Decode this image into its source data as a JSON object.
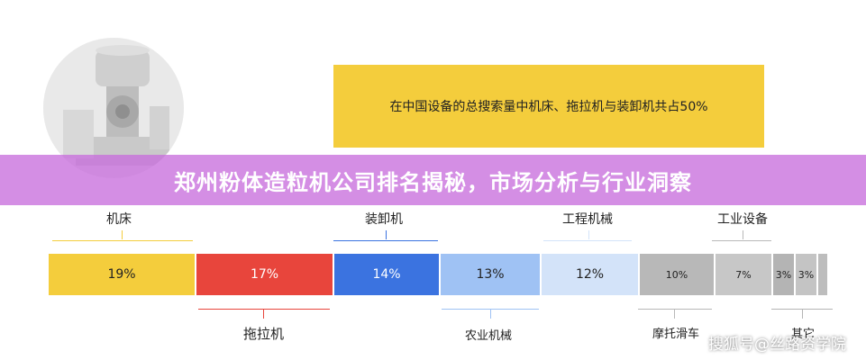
{
  "banner": {
    "title": "郑州粉体造粒机公司排名揭秘，市场分析与行业洞察"
  },
  "highlight": {
    "text": "在中国设备的总搜索量中机床、拖拉机与装卸机共占50%"
  },
  "watermark": "搜狐号@丝路资学院",
  "top_labels": [
    "机床",
    "装卸机",
    "工程机械",
    "工业设备"
  ],
  "bottom_labels": [
    "拖拉机",
    "农业机械",
    "摩托滑车",
    "其它"
  ],
  "segments": [
    {
      "label": "19%",
      "color": "#f4cd3c"
    },
    {
      "label": "17%",
      "color": "#e8453c"
    },
    {
      "label": "14%",
      "color": "#3b73e0"
    },
    {
      "label": "13%",
      "color": "#9fc2f4"
    },
    {
      "label": "12%",
      "color": "#d3e3f9"
    },
    {
      "label": "10%",
      "color": "#b8b8b8"
    },
    {
      "label": "7%",
      "color": "#c7c7c7"
    },
    {
      "label": "3%",
      "color": "#b4b4b4"
    },
    {
      "label": "3%",
      "color": "#c4c4c4"
    },
    {
      "label": "",
      "color": "#bdbdbd"
    }
  ],
  "colors": {
    "yellow": "#f4cd3c",
    "red": "#e8453c",
    "blue": "#3b73e0",
    "banner": "#c86edc"
  }
}
